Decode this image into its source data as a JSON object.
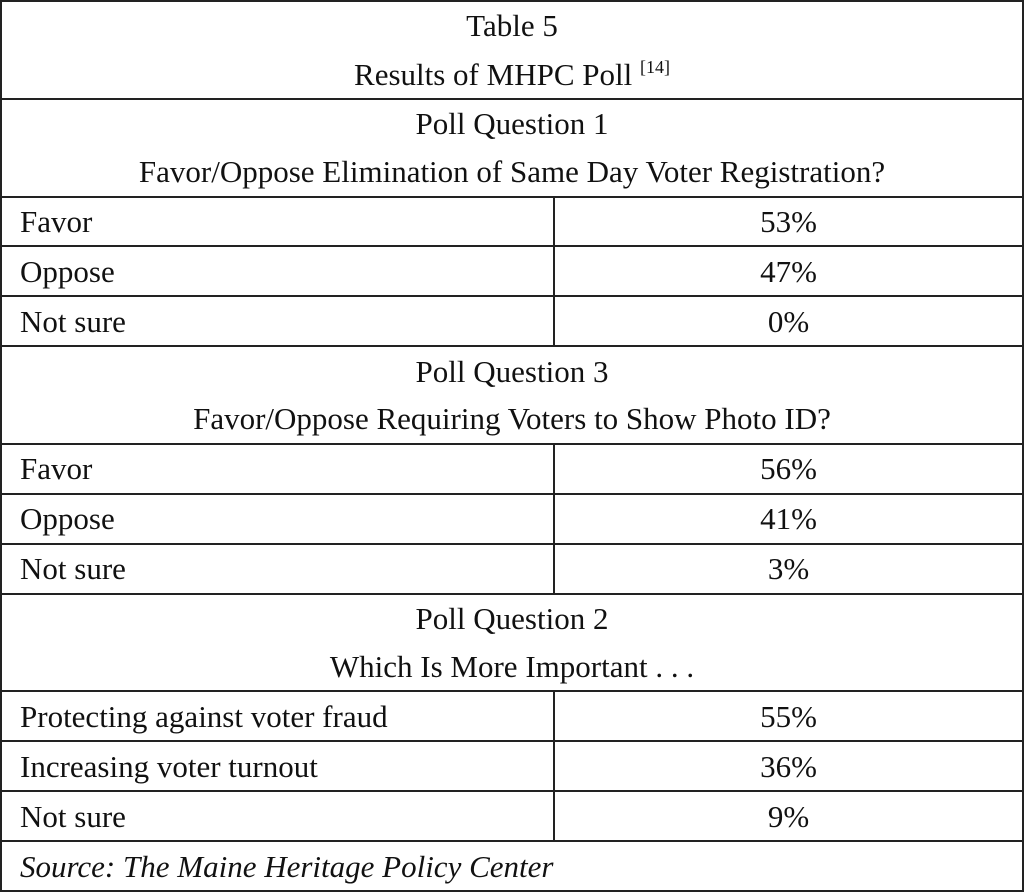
{
  "header": {
    "title": "Table 5",
    "subtitle": "Results of MHPC Poll",
    "reference": "[14]"
  },
  "sections": [
    {
      "heading": "Poll Question 1",
      "question": "Favor/Oppose Elimination of Same Day Voter Registration?",
      "rows": [
        [
          "Favor",
          "53%"
        ],
        [
          "Oppose",
          "47%"
        ],
        [
          "Not sure",
          "0%"
        ]
      ]
    },
    {
      "heading": "Poll Question 3",
      "question": "Favor/Oppose Requiring Voters to Show Photo ID?",
      "rows": [
        [
          "Favor",
          "56%"
        ],
        [
          "Oppose",
          "41%"
        ],
        [
          "Not sure",
          "3%"
        ]
      ]
    },
    {
      "heading": "Poll Question 2",
      "question": "Which Is More Important . . .",
      "rows": [
        [
          "Protecting against voter fraud",
          "55%"
        ],
        [
          "Increasing voter turnout",
          "36%"
        ],
        [
          "Not sure",
          "9%"
        ]
      ]
    }
  ],
  "source": "Source: The Maine Heritage Policy Center"
}
